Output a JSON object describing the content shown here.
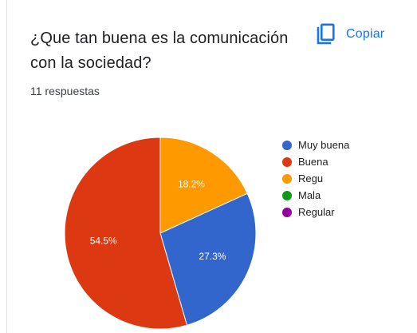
{
  "question": {
    "title": "¿Que tan buena es la comunicación con la sociedad?",
    "responses": "11 respuestas"
  },
  "toolbar": {
    "copy_label": "Copiar",
    "copy_icon": "copy-icon",
    "accent_color": "#1a73e8"
  },
  "chart_data": {
    "type": "pie",
    "title": "",
    "total_responses": 11,
    "slices": [
      {
        "label": "Muy buena",
        "percent": 27.3,
        "display": "27.3%",
        "color": "#3366cc"
      },
      {
        "label": "Buena",
        "percent": 54.5,
        "display": "54.5%",
        "color": "#dc3912"
      },
      {
        "label": "Regu",
        "percent": 18.2,
        "display": "18.2%",
        "color": "#ff9900"
      },
      {
        "label": "Mala",
        "percent": 0,
        "display": "",
        "color": "#109618"
      },
      {
        "label": "Regular",
        "percent": 0,
        "display": "",
        "color": "#990099"
      }
    ],
    "legend_position": "right"
  }
}
